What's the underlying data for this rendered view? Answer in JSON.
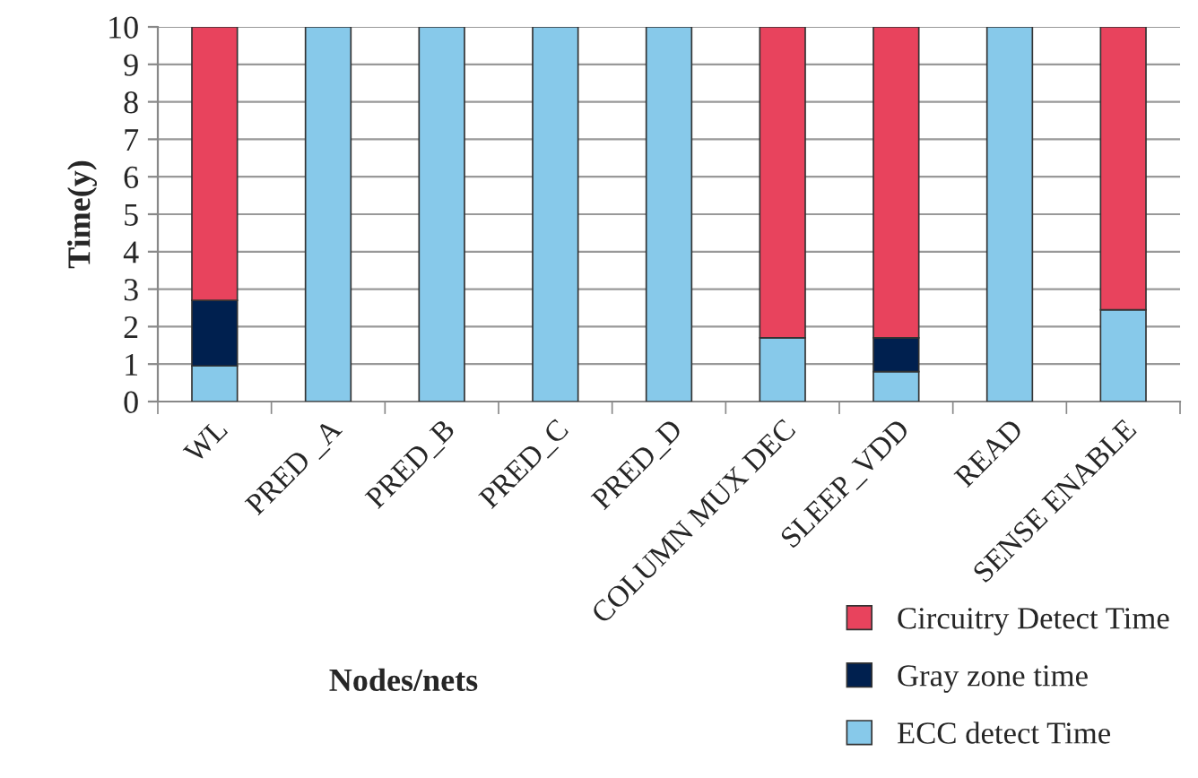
{
  "chart_data": {
    "type": "bar",
    "stacked": true,
    "xlabel": "Nodes/nets",
    "ylabel": "Time(y)",
    "categories": [
      "WL",
      "PRED _A",
      "PRED_B",
      "PRED_C",
      "PRED_D",
      "COLUMN MUX DEC",
      "SLEEP_VDD",
      "READ",
      "SENSE ENABLE"
    ],
    "series": [
      {
        "name": "ECC detect Time",
        "color": "#87c9ea",
        "values": [
          0.95,
          10,
          10,
          10,
          10,
          1.7,
          0.8,
          10,
          2.45
        ]
      },
      {
        "name": "Gray zone time",
        "color": "#00204f",
        "values": [
          1.75,
          null,
          null,
          null,
          null,
          null,
          0.9,
          null,
          null
        ]
      },
      {
        "name": "Circuitry Detect Time",
        "color": "#e8435d",
        "values": [
          7.3,
          null,
          null,
          null,
          null,
          8.3,
          8.3,
          null,
          7.55
        ]
      }
    ],
    "ylim": [
      0,
      10
    ],
    "yticks": [
      0,
      1,
      2,
      3,
      4,
      5,
      6,
      7,
      8,
      9,
      10
    ],
    "grid": "y",
    "legend": "bottom right"
  }
}
